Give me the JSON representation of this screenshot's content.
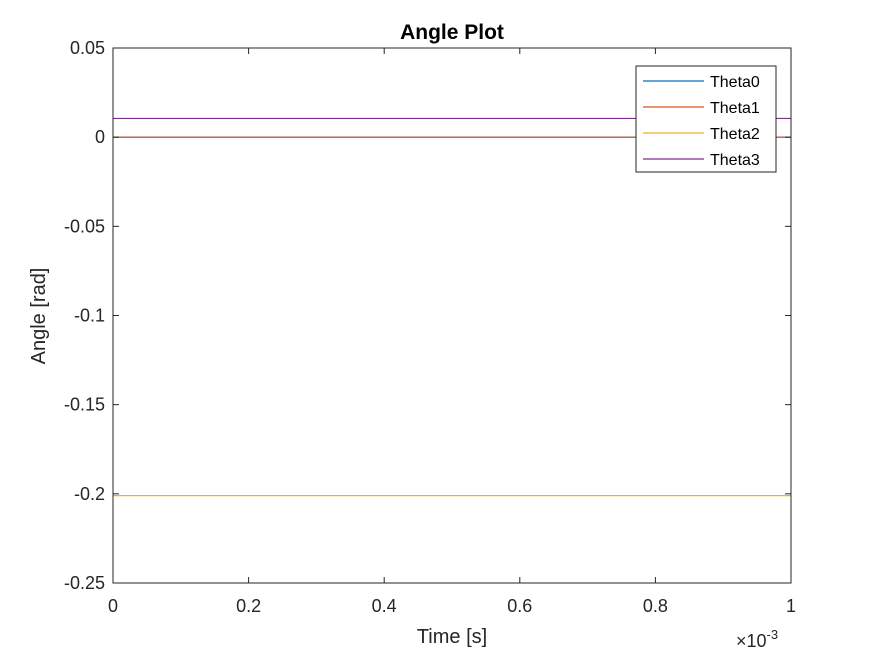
{
  "chart_data": {
    "type": "line",
    "title": "Angle Plot",
    "xlabel": "Time [s]",
    "ylabel": "Angle [rad]",
    "x_exponent_multiplier": "×",
    "x_exponent_base": "10",
    "x_exponent": "-3",
    "xlim": [
      0,
      1
    ],
    "ylim": [
      -0.25,
      0.05
    ],
    "xticks": [
      0,
      0.2,
      0.4,
      0.6,
      0.8,
      1
    ],
    "xtick_labels": [
      "0",
      "0.2",
      "0.4",
      "0.6",
      "0.8",
      "1"
    ],
    "yticks": [
      0.05,
      0,
      -0.05,
      -0.1,
      -0.15,
      -0.2,
      -0.25
    ],
    "ytick_labels": [
      "0.05",
      "0",
      "-0.05",
      "-0.1",
      "-0.15",
      "-0.2",
      "-0.25"
    ],
    "grid": false,
    "legend_position": "top-right",
    "series": [
      {
        "name": "Theta0",
        "color": "#0072BD",
        "x": [
          0,
          1
        ],
        "y": [
          0,
          0
        ]
      },
      {
        "name": "Theta1",
        "color": "#D95319",
        "x": [
          0,
          1
        ],
        "y": [
          0,
          0
        ]
      },
      {
        "name": "Theta2",
        "color": "#EDB120",
        "x": [
          0,
          1
        ],
        "y": [
          -0.201,
          -0.201
        ]
      },
      {
        "name": "Theta3",
        "color": "#7E2F8E",
        "x": [
          0,
          1
        ],
        "y": [
          0.0105,
          0.0105
        ]
      }
    ]
  }
}
